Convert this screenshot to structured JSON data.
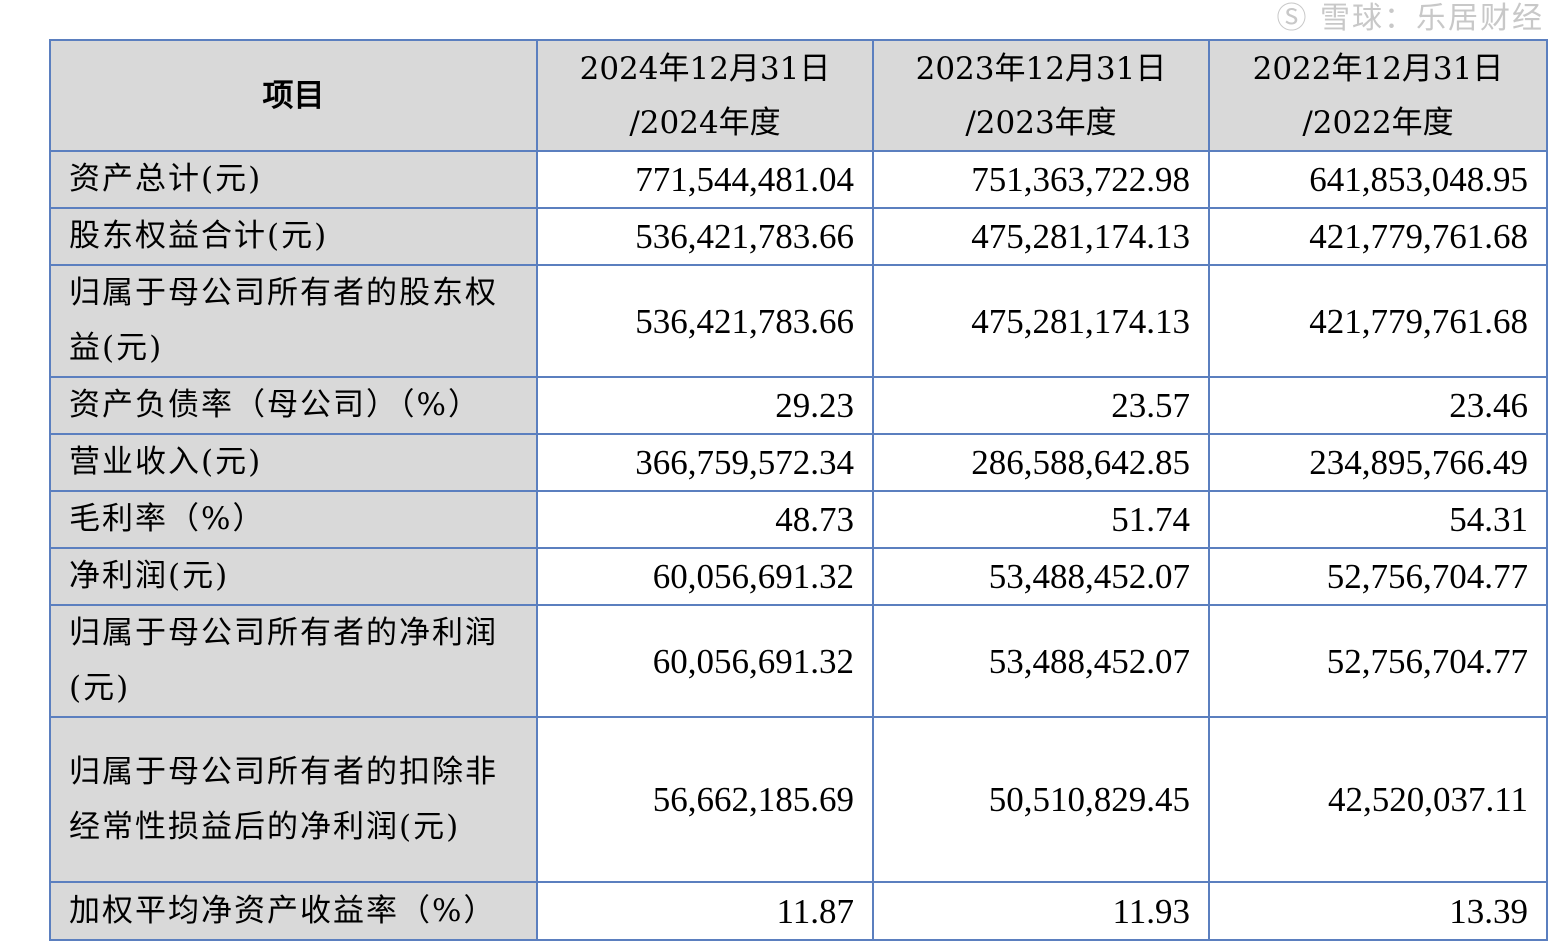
{
  "table": {
    "headers": [
      {
        "line1": "项目",
        "line2": ""
      },
      {
        "line1": "2024年12月31日",
        "line2": "/2024年度"
      },
      {
        "line1": "2023年12月31日",
        "line2": "/2023年度"
      },
      {
        "line1": "2022年12月31日",
        "line2": "/2022年度"
      }
    ],
    "rows": [
      {
        "label": "资产总计(元)",
        "values": [
          "771,544,481.04",
          "751,363,722.98",
          "641,853,048.95"
        ]
      },
      {
        "label": "股东权益合计(元)",
        "values": [
          "536,421,783.66",
          "475,281,174.13",
          "421,779,761.68"
        ]
      },
      {
        "label": "归属于母公司所有者的股东权益(元)",
        "values": [
          "536,421,783.66",
          "475,281,174.13",
          "421,779,761.68"
        ]
      },
      {
        "label": "资产负债率（母公司）（%）",
        "values": [
          "29.23",
          "23.57",
          "23.46"
        ]
      },
      {
        "label": "营业收入(元)",
        "values": [
          "366,759,572.34",
          "286,588,642.85",
          "234,895,766.49"
        ]
      },
      {
        "label": "毛利率（%）",
        "values": [
          "48.73",
          "51.74",
          "54.31"
        ]
      },
      {
        "label": "净利润(元)",
        "values": [
          "60,056,691.32",
          "53,488,452.07",
          "52,756,704.77"
        ]
      },
      {
        "label": "归属于母公司所有者的净利润(元)",
        "values": [
          "60,056,691.32",
          "53,488,452.07",
          "52,756,704.77"
        ]
      },
      {
        "label": "归属于母公司所有者的扣除非经常性损益后的净利润(元)",
        "values": [
          "56,662,185.69",
          "50,510,829.45",
          "42,520,037.11"
        ]
      },
      {
        "label": "加权平均净资产收益率（%）",
        "values": [
          "11.87",
          "11.93",
          "13.39"
        ]
      }
    ]
  },
  "watermark": "雪球：乐居财经"
}
